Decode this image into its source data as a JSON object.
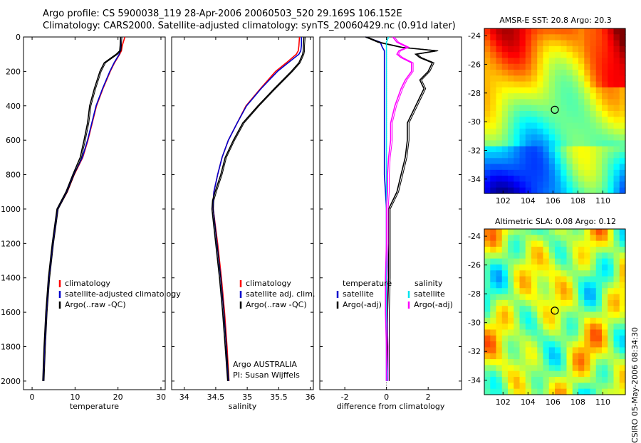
{
  "header": {
    "line1": "Argo profile: CS 5900038_119 28-Apr-2006 20060503_520 29.169S 106.152E",
    "line2": "Climatology: CARS2000. Satellite-adjusted climatology: synTS_20060429.nc (0.91d later)"
  },
  "colors": {
    "climatology": "#ff0000",
    "satellite": "#0000cc",
    "argo": "#000000",
    "salinity_satellite": "#00e5ee",
    "salinity_argo": "#ff00ff"
  },
  "chart_data": [
    {
      "type": "line",
      "xlabel": "temperature",
      "ylabel": "",
      "xlim": [
        -2,
        31
      ],
      "ylim": [
        2050,
        0
      ],
      "xticks": [
        "0",
        "10",
        "20",
        "30"
      ],
      "yticks": [
        "0",
        "200",
        "400",
        "600",
        "800",
        "1000",
        "1200",
        "1400",
        "1600",
        "1800",
        "2000"
      ],
      "legend": [
        "climatology",
        "satellite-adjusted climatology",
        "Argo(..raw -QC)"
      ],
      "depth": [
        0,
        50,
        80,
        100,
        150,
        200,
        300,
        400,
        500,
        600,
        700,
        800,
        900,
        1000,
        1200,
        1400,
        1600,
        1800,
        2000
      ],
      "series": [
        {
          "name": "climatology",
          "values": [
            21.6,
            21.0,
            20.8,
            20.4,
            19.2,
            18.2,
            16.5,
            15.0,
            14.0,
            13.0,
            11.8,
            9.8,
            8.2,
            6.0,
            4.8,
            3.9,
            3.3,
            2.9,
            2.6
          ]
        },
        {
          "name": "satellite-adjusted climatology",
          "values": [
            20.6,
            20.6,
            20.5,
            20.3,
            19.1,
            18.1,
            16.4,
            14.9,
            13.9,
            12.9,
            11.7,
            9.7,
            8.1,
            5.9,
            4.8,
            3.9,
            3.3,
            2.9,
            2.6
          ]
        },
        {
          "name": "Argo(..raw -QC)",
          "values": [
            20.6,
            20.5,
            20.4,
            19.6,
            16.8,
            15.8,
            14.5,
            13.4,
            12.9,
            12.1,
            11.2,
            9.5,
            7.9,
            5.8,
            4.7,
            3.8,
            3.2,
            2.8,
            2.5
          ]
        }
      ]
    },
    {
      "type": "line",
      "xlabel": "salinity",
      "xlim": [
        33.8,
        36.05
      ],
      "ylim": [
        2050,
        0
      ],
      "xticks": [
        "34",
        "34.5",
        "35",
        "35.5",
        "36"
      ],
      "legend": [
        "climatology",
        "satellite adj. clim.",
        "Argo(..raw -QC)"
      ],
      "annotation": [
        "Argo AUSTRALIA",
        "PI: Susan Wijffels"
      ],
      "depth": [
        0,
        50,
        80,
        100,
        150,
        200,
        300,
        400,
        500,
        600,
        700,
        800,
        900,
        950,
        1000,
        1200,
        1400,
        1600,
        1800,
        2000
      ],
      "series": [
        {
          "name": "climatology",
          "values": [
            35.83,
            35.82,
            35.81,
            35.78,
            35.62,
            35.45,
            35.21,
            34.98,
            34.84,
            34.7,
            34.6,
            34.53,
            34.47,
            34.46,
            34.46,
            34.53,
            34.59,
            34.64,
            34.68,
            34.71
          ]
        },
        {
          "name": "satellite adj. clim.",
          "values": [
            35.86,
            35.86,
            35.85,
            35.82,
            35.65,
            35.48,
            35.22,
            34.99,
            34.84,
            34.7,
            34.6,
            34.53,
            34.47,
            34.46,
            34.46,
            34.52,
            34.58,
            34.63,
            34.67,
            34.7
          ]
        },
        {
          "name": "Argo(..raw -QC)",
          "values": [
            35.9,
            35.89,
            35.89,
            35.88,
            35.82,
            35.7,
            35.43,
            35.17,
            34.93,
            34.78,
            34.65,
            34.58,
            34.49,
            34.45,
            34.44,
            34.5,
            34.56,
            34.61,
            34.65,
            34.69
          ]
        }
      ]
    },
    {
      "type": "line",
      "xlabel": "difference from climatology",
      "xlim": [
        -3.2,
        3.6
      ],
      "ylim": [
        2050,
        0
      ],
      "xticks": [
        "-2",
        "0",
        "2"
      ],
      "legend_left": [
        "temperature",
        "satellite",
        "Argo(-adj)"
      ],
      "legend_right": [
        "salinity",
        "satellite",
        "Argo(-adj)"
      ],
      "depth": [
        0,
        30,
        60,
        80,
        100,
        120,
        150,
        200,
        250,
        300,
        400,
        500,
        600,
        700,
        800,
        900,
        1000,
        1200,
        1400,
        1600,
        1800,
        2000
      ],
      "series": [
        {
          "name": "temperature satellite",
          "values": [
            -1.0,
            -0.3,
            -0.2,
            -0.1,
            -0.1,
            -0.1,
            -0.1,
            -0.1,
            -0.1,
            -0.1,
            -0.1,
            -0.1,
            -0.1,
            -0.1,
            -0.1,
            -0.05,
            0.0,
            0.0,
            0.0,
            0.0,
            0.0,
            0.0
          ]
        },
        {
          "name": "temperature Argo(-adj)",
          "values": [
            -1.0,
            -0.4,
            0.7,
            2.4,
            1.4,
            1.6,
            2.2,
            2.0,
            1.6,
            1.8,
            1.4,
            1.0,
            1.0,
            0.9,
            0.7,
            0.5,
            0.1,
            0.1,
            0.1,
            0.05,
            0.05,
            0.05
          ]
        },
        {
          "name": "salinity satellite",
          "values": [
            0.1,
            0.0,
            0.0,
            0.0,
            0.0,
            0.0,
            0.0,
            0.0,
            0.0,
            0.0,
            0.0,
            0.0,
            0.0,
            0.0,
            0.0,
            0.0,
            0.0,
            0.0,
            0.0,
            0.0,
            0.0,
            0.05
          ]
        },
        {
          "name": "salinity Argo(-adj)",
          "values": [
            0.3,
            0.5,
            1.0,
            0.6,
            0.5,
            0.7,
            1.2,
            1.2,
            0.9,
            0.7,
            0.4,
            0.2,
            0.2,
            0.1,
            0.05,
            0.05,
            0.0,
            0.0,
            -0.05,
            -0.05,
            0.0,
            0.0
          ]
        }
      ]
    },
    {
      "type": "heatmap",
      "title": "AMSR-E SST: 20.8  Argo: 20.3",
      "xlim": [
        100.5,
        111.8
      ],
      "ylim": [
        -35,
        -23.5
      ],
      "xticks": [
        "102",
        "104",
        "106",
        "108",
        "110"
      ],
      "yticks": [
        "-24",
        "-26",
        "-28",
        "-30",
        "-32",
        "-34"
      ],
      "marker": {
        "lon": 106.15,
        "lat": -29.17
      }
    },
    {
      "type": "heatmap",
      "title": "Altimetric SLA: 0.08  Argo: 0.12",
      "xlim": [
        100.5,
        111.8
      ],
      "ylim": [
        -35,
        -23.5
      ],
      "xticks": [
        "102",
        "104",
        "106",
        "108",
        "110"
      ],
      "yticks": [
        "-24",
        "-26",
        "-28",
        "-30",
        "-32",
        "-34"
      ],
      "marker": {
        "lon": 106.15,
        "lat": -29.17
      }
    }
  ],
  "footer": {
    "stamp": "CSIRO 05-May-2006 08:34:30"
  }
}
